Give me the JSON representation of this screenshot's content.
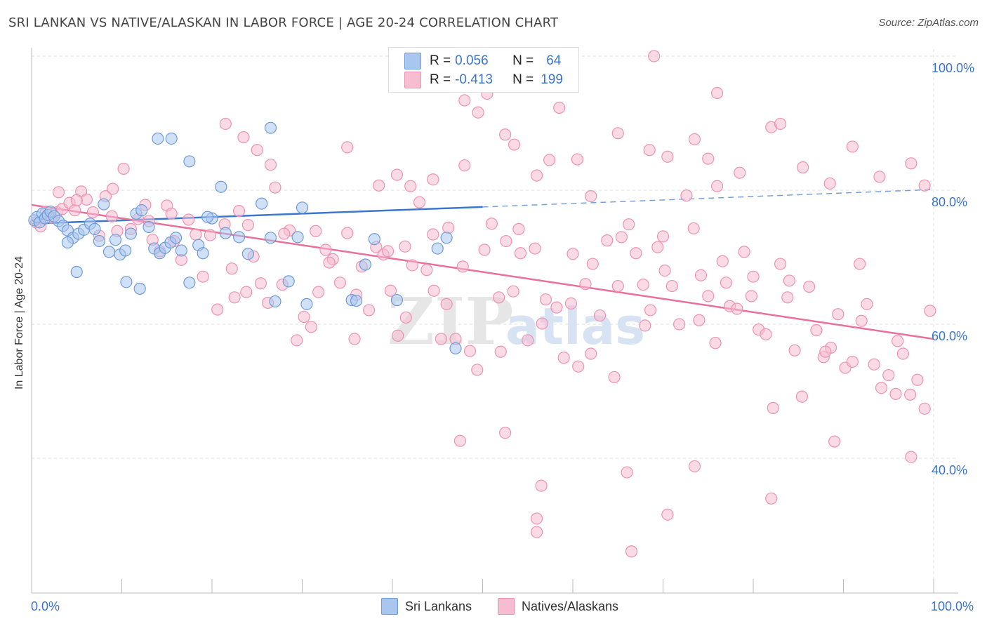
{
  "title": "SRI LANKAN VS NATIVE/ALASKAN IN LABOR FORCE | AGE 20-24 CORRELATION CHART",
  "source": "Source: ZipAtlas.com",
  "watermark": {
    "zip": "ZIP",
    "atlas": "atlas"
  },
  "colors": {
    "blue_fill": "#a9c6ee",
    "blue_stroke": "#6f9bd8",
    "blue_line": "#3a78cf",
    "pink_fill": "#f6bcd0",
    "pink_stroke": "#ec93b2",
    "pink_line": "#e9709b",
    "axis_text": "#3b74c9",
    "grid": "#dddddd"
  },
  "legend_box": {
    "rows": [
      {
        "r_label": "R =",
        "r_value": "0.056",
        "n_label": "N =",
        "n_value": "64",
        "color": "#a9c6ee"
      },
      {
        "r_label": "R =",
        "r_value": "-0.413",
        "n_label": "N =",
        "n_value": "199",
        "color": "#f6bcd0"
      }
    ]
  },
  "chart_data": {
    "type": "scatter",
    "title": "SRI LANKAN VS NATIVE/ALASKAN IN LABOR FORCE | AGE 20-24 CORRELATION CHART",
    "xlabel": "",
    "ylabel": "In Labor Force | Age 20-24",
    "xlim": [
      0,
      100
    ],
    "ylim": [
      20,
      100
    ],
    "x_tick_labels": [
      "0.0%",
      "100.0%"
    ],
    "y_tick_labels": [
      "100.0%",
      "80.0%",
      "60.0%",
      "40.0%"
    ],
    "y_ticks": [
      100,
      80,
      60,
      40
    ],
    "grid": true,
    "legend_position": "bottom",
    "series": [
      {
        "name": "Sri Lankans",
        "trend": {
          "x": [
            0,
            50
          ],
          "y": [
            75.0,
            77.5
          ],
          "dashed_to": [
            100,
            80.1
          ]
        },
        "points": [
          [
            0.3,
            75.5
          ],
          [
            0.6,
            76.0
          ],
          [
            0.9,
            75.2
          ],
          [
            1.2,
            76.5
          ],
          [
            1.5,
            75.8
          ],
          [
            1.8,
            76.3
          ],
          [
            2.1,
            76.8
          ],
          [
            2.5,
            76.1
          ],
          [
            3.0,
            75.4
          ],
          [
            3.5,
            74.7
          ],
          [
            4.0,
            74.0
          ],
          [
            4.6,
            72.9
          ],
          [
            5.2,
            73.5
          ],
          [
            5.8,
            74.1
          ],
          [
            6.5,
            75.0
          ],
          [
            7.0,
            74.2
          ],
          [
            7.5,
            72.4
          ],
          [
            8.0,
            77.9
          ],
          [
            8.6,
            70.8
          ],
          [
            9.3,
            72.6
          ],
          [
            9.8,
            70.4
          ],
          [
            10.4,
            71.0
          ],
          [
            11.0,
            73.5
          ],
          [
            11.6,
            76.5
          ],
          [
            12.2,
            77.0
          ],
          [
            13.0,
            74.5
          ],
          [
            13.6,
            71.3
          ],
          [
            14.2,
            70.6
          ],
          [
            14.8,
            71.4
          ],
          [
            15.4,
            72.2
          ],
          [
            16.0,
            72.9
          ],
          [
            16.6,
            71.0
          ],
          [
            4.0,
            72.2
          ],
          [
            5.0,
            67.8
          ],
          [
            10.5,
            66.3
          ],
          [
            12.0,
            65.3
          ],
          [
            17.5,
            66.2
          ],
          [
            18.5,
            71.8
          ],
          [
            19.0,
            70.6
          ],
          [
            20.0,
            75.8
          ],
          [
            21.5,
            73.6
          ],
          [
            23.0,
            73.0
          ],
          [
            24.0,
            70.5
          ],
          [
            25.5,
            78.0
          ],
          [
            26.5,
            72.9
          ],
          [
            27.0,
            63.4
          ],
          [
            28.5,
            66.4
          ],
          [
            29.5,
            73.0
          ],
          [
            30.5,
            63.0
          ],
          [
            35.5,
            63.6
          ],
          [
            37.0,
            68.9
          ],
          [
            38.0,
            72.7
          ],
          [
            40.5,
            63.6
          ],
          [
            45.0,
            71.3
          ],
          [
            46.0,
            72.9
          ],
          [
            47.0,
            56.4
          ],
          [
            14.0,
            87.7
          ],
          [
            15.5,
            87.7
          ],
          [
            17.5,
            84.3
          ],
          [
            21.0,
            80.5
          ],
          [
            26.5,
            89.3
          ],
          [
            19.5,
            76.0
          ],
          [
            30.0,
            77.4
          ],
          [
            36.0,
            63.5
          ]
        ]
      },
      {
        "name": "Natives/Alaskans",
        "trend": {
          "x": [
            0,
            100
          ],
          "y": [
            77.8,
            57.8
          ]
        },
        "points": [
          [
            0.5,
            75.2
          ],
          [
            1.0,
            74.6
          ],
          [
            1.6,
            76.8
          ],
          [
            2.2,
            75.9
          ],
          [
            2.8,
            76.7
          ],
          [
            3.4,
            77.2
          ],
          [
            4.2,
            78.1
          ],
          [
            4.8,
            77.0
          ],
          [
            5.5,
            79.8
          ],
          [
            6.1,
            78.6
          ],
          [
            6.8,
            76.7
          ],
          [
            7.5,
            73.2
          ],
          [
            8.2,
            79.1
          ],
          [
            8.9,
            76.1
          ],
          [
            9.5,
            73.9
          ],
          [
            10.2,
            83.2
          ],
          [
            11.0,
            74.2
          ],
          [
            11.8,
            75.7
          ],
          [
            12.6,
            77.8
          ],
          [
            13.4,
            72.6
          ],
          [
            14.2,
            70.9
          ],
          [
            15.0,
            77.7
          ],
          [
            15.8,
            72.4
          ],
          [
            16.6,
            69.6
          ],
          [
            17.4,
            75.6
          ],
          [
            18.2,
            73.4
          ],
          [
            19.0,
            67.1
          ],
          [
            19.8,
            73.3
          ],
          [
            20.6,
            62.2
          ],
          [
            21.4,
            74.9
          ],
          [
            22.2,
            68.3
          ],
          [
            23.0,
            76.9
          ],
          [
            23.8,
            64.8
          ],
          [
            24.6,
            70.1
          ],
          [
            25.4,
            66.1
          ],
          [
            26.2,
            63.2
          ],
          [
            27.0,
            80.4
          ],
          [
            27.8,
            65.9
          ],
          [
            28.6,
            74.0
          ],
          [
            29.4,
            57.6
          ],
          [
            30.2,
            61.1
          ],
          [
            31.0,
            59.6
          ],
          [
            31.8,
            64.8
          ],
          [
            32.6,
            71.1
          ],
          [
            33.4,
            69.7
          ],
          [
            34.2,
            66.2
          ],
          [
            35.0,
            73.6
          ],
          [
            35.8,
            57.8
          ],
          [
            36.6,
            68.6
          ],
          [
            37.4,
            62.1
          ],
          [
            38.2,
            71.5
          ],
          [
            39.0,
            70.4
          ],
          [
            39.8,
            65.0
          ],
          [
            40.6,
            58.3
          ],
          [
            41.4,
            71.6
          ],
          [
            42.2,
            68.8
          ],
          [
            43.0,
            78.2
          ],
          [
            43.8,
            68.1
          ],
          [
            44.6,
            65.0
          ],
          [
            45.4,
            57.8
          ],
          [
            46.2,
            74.4
          ],
          [
            47.0,
            57.8
          ],
          [
            47.8,
            68.6
          ],
          [
            48.6,
            56.0
          ],
          [
            49.4,
            53.2
          ],
          [
            50.2,
            71.1
          ],
          [
            51.0,
            75.0
          ],
          [
            51.8,
            64.0
          ],
          [
            52.6,
            72.4
          ],
          [
            53.4,
            64.9
          ],
          [
            54.2,
            70.6
          ],
          [
            55.0,
            57.6
          ],
          [
            55.8,
            71.3
          ],
          [
            56.6,
            60.1
          ],
          [
            57.4,
            84.5
          ],
          [
            58.2,
            62.5
          ],
          [
            59.0,
            55.0
          ],
          [
            59.8,
            63.1
          ],
          [
            60.6,
            53.7
          ],
          [
            61.4,
            66.0
          ],
          [
            62.2,
            69.0
          ],
          [
            63.0,
            61.3
          ],
          [
            63.8,
            72.5
          ],
          [
            64.6,
            52.1
          ],
          [
            65.4,
            73.0
          ],
          [
            66.2,
            74.9
          ],
          [
            67.0,
            70.6
          ],
          [
            67.8,
            65.9
          ],
          [
            68.6,
            62.1
          ],
          [
            69.4,
            71.5
          ],
          [
            70.2,
            68.0
          ],
          [
            71.0,
            65.7
          ],
          [
            71.8,
            60.0
          ],
          [
            72.6,
            79.2
          ],
          [
            73.4,
            74.3
          ],
          [
            74.2,
            67.3
          ],
          [
            75.0,
            64.2
          ],
          [
            75.8,
            57.2
          ],
          [
            76.6,
            69.4
          ],
          [
            77.4,
            62.7
          ],
          [
            78.2,
            62.3
          ],
          [
            79.0,
            70.8
          ],
          [
            79.8,
            64.2
          ],
          [
            80.6,
            59.2
          ],
          [
            81.4,
            58.5
          ],
          [
            82.2,
            47.5
          ],
          [
            83.0,
            69.0
          ],
          [
            83.8,
            64.0
          ],
          [
            84.6,
            56.1
          ],
          [
            85.4,
            49.2
          ],
          [
            86.2,
            65.6
          ],
          [
            87.0,
            59.1
          ],
          [
            87.8,
            55.1
          ],
          [
            88.6,
            56.5
          ],
          [
            89.4,
            61.5
          ],
          [
            90.2,
            53.5
          ],
          [
            91.0,
            54.4
          ],
          [
            91.8,
            69.0
          ],
          [
            92.6,
            63.0
          ],
          [
            93.4,
            54.0
          ],
          [
            94.2,
            50.5
          ],
          [
            95.0,
            52.4
          ],
          [
            95.8,
            49.6
          ],
          [
            96.6,
            55.6
          ],
          [
            97.4,
            49.5
          ],
          [
            98.2,
            51.7
          ],
          [
            99.0,
            47.4
          ],
          [
            99.6,
            62.0
          ],
          [
            3.0,
            79.7
          ],
          [
            5.0,
            78.5
          ],
          [
            9.0,
            80.2
          ],
          [
            13.0,
            75.4
          ],
          [
            15.5,
            76.5
          ],
          [
            22.5,
            64.0
          ],
          [
            24.0,
            74.8
          ],
          [
            28.0,
            73.5
          ],
          [
            31.5,
            73.9
          ],
          [
            33.0,
            69.2
          ],
          [
            36.0,
            64.4
          ],
          [
            39.5,
            70.9
          ],
          [
            41.5,
            61.0
          ],
          [
            44.5,
            73.4
          ],
          [
            46.0,
            63.0
          ],
          [
            52.0,
            55.9
          ],
          [
            54.0,
            74.2
          ],
          [
            57.0,
            63.7
          ],
          [
            60.0,
            70.5
          ],
          [
            62.0,
            55.6
          ],
          [
            65.0,
            65.7
          ],
          [
            68.0,
            59.8
          ],
          [
            70.0,
            73.1
          ],
          [
            74.0,
            60.6
          ],
          [
            77.0,
            66.2
          ],
          [
            80.0,
            67.1
          ],
          [
            84.0,
            66.5
          ],
          [
            88.0,
            55.9
          ],
          [
            92.0,
            60.5
          ],
          [
            96.0,
            57.5
          ],
          [
            21.5,
            89.9
          ],
          [
            23.5,
            87.9
          ],
          [
            25.0,
            86.0
          ],
          [
            26.5,
            83.8
          ],
          [
            35.0,
            86.4
          ],
          [
            38.5,
            80.7
          ],
          [
            40.5,
            82.3
          ],
          [
            42.0,
            80.6
          ],
          [
            44.5,
            81.6
          ],
          [
            48.0,
            83.7
          ],
          [
            49.5,
            91.6
          ],
          [
            50.5,
            94.4
          ],
          [
            52.5,
            88.3
          ],
          [
            53.5,
            86.8
          ],
          [
            56.0,
            82.2
          ],
          [
            58.5,
            92.3
          ],
          [
            60.5,
            84.6
          ],
          [
            62.0,
            79.1
          ],
          [
            65.0,
            88.5
          ],
          [
            68.5,
            86.0
          ],
          [
            70.5,
            85.0
          ],
          [
            73.5,
            87.6
          ],
          [
            75.0,
            84.7
          ],
          [
            76.0,
            80.6
          ],
          [
            78.5,
            82.6
          ],
          [
            82.0,
            89.4
          ],
          [
            85.5,
            83.4
          ],
          [
            88.5,
            81.0
          ],
          [
            91.0,
            86.5
          ],
          [
            94.0,
            82.0
          ],
          [
            97.5,
            84.0
          ],
          [
            99.0,
            80.7
          ],
          [
            58.0,
            100.0
          ],
          [
            60.0,
            100.0
          ],
          [
            69.0,
            100.0
          ],
          [
            76.0,
            94.5
          ],
          [
            83.0,
            89.9
          ],
          [
            48.0,
            93.4
          ],
          [
            47.5,
            42.6
          ],
          [
            52.5,
            43.8
          ],
          [
            56.5,
            35.9
          ],
          [
            56.0,
            31.0
          ],
          [
            56.0,
            29.0
          ],
          [
            66.0,
            37.9
          ],
          [
            66.5,
            26.1
          ],
          [
            70.5,
            31.6
          ],
          [
            73.5,
            38.8
          ],
          [
            82.0,
            34.0
          ],
          [
            89.0,
            42.5
          ],
          [
            97.5,
            40.2
          ]
        ]
      }
    ]
  },
  "bottom_legend": [
    {
      "label": "Sri Lankans",
      "color": "#a9c6ee"
    },
    {
      "label": "Natives/Alaskans",
      "color": "#f6bcd0"
    }
  ]
}
